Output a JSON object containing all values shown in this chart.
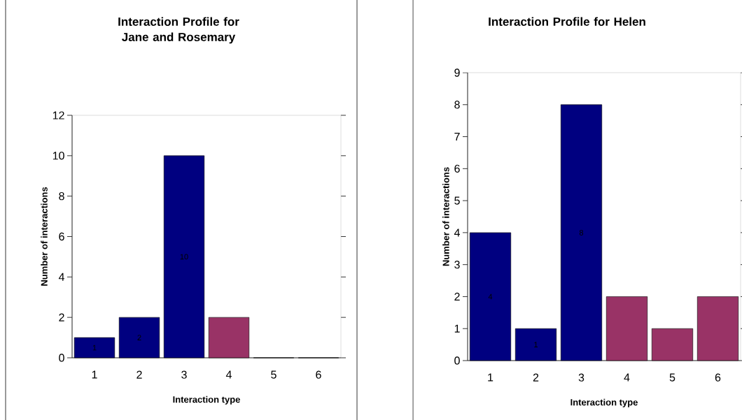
{
  "chart_data": [
    {
      "type": "bar",
      "title": "Interaction Profile for Jane and Rosemary",
      "xlabel": "Interaction type",
      "ylabel": "Number of interactions",
      "categories": [
        "1",
        "2",
        "3",
        "4",
        "5",
        "6"
      ],
      "values": [
        1,
        2,
        10,
        2,
        0,
        0
      ],
      "colors": [
        "#000080",
        "#000080",
        "#000080",
        "#993366",
        "#993366",
        "#993366"
      ],
      "value_labels": [
        "1",
        "2",
        "10",
        null,
        null,
        null
      ],
      "ylim": [
        0,
        12
      ],
      "yticks": [
        0,
        2,
        4,
        6,
        8,
        10,
        12
      ]
    },
    {
      "type": "bar",
      "title": "Interaction Profile for Helen",
      "xlabel": "Interaction type",
      "ylabel": "Number of interactions",
      "categories": [
        "1",
        "2",
        "3",
        "4",
        "5",
        "6"
      ],
      "values": [
        4,
        1,
        8,
        2,
        1,
        2
      ],
      "colors": [
        "#000080",
        "#000080",
        "#000080",
        "#993366",
        "#993366",
        "#993366"
      ],
      "value_labels": [
        "4",
        "1",
        "8",
        null,
        null,
        null
      ],
      "ylim": [
        0,
        9
      ],
      "yticks": [
        0,
        1,
        2,
        3,
        4,
        5,
        6,
        7,
        8,
        9
      ]
    }
  ]
}
